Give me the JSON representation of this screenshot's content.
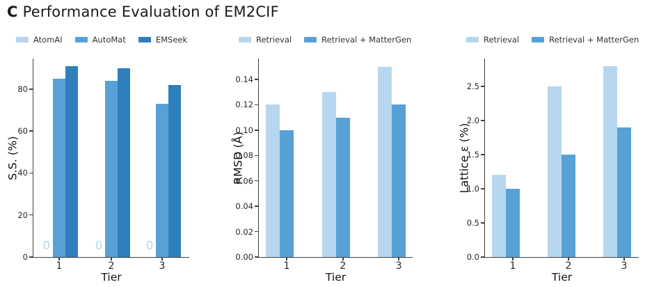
{
  "title": {
    "prefix": "C",
    "text": "Performance Evaluation of EM2CIF"
  },
  "chart_data": [
    {
      "type": "bar",
      "name": "structure-similarity",
      "xlabel": "Tier",
      "ylabel": "S.S. (%)",
      "categories": [
        "1",
        "2",
        "3"
      ],
      "series": [
        {
          "name": "AtomAI",
          "color": "#b6d7ef",
          "values": [
            0,
            0,
            0
          ],
          "show_value_labels": true
        },
        {
          "name": "AutoMat",
          "color": "#57a1d6",
          "values": [
            85,
            84,
            73
          ]
        },
        {
          "name": "EMSeek",
          "color": "#2f7fbc",
          "values": [
            91,
            90,
            82
          ]
        }
      ],
      "yticks": [
        0,
        20,
        40,
        60,
        80
      ],
      "ytick_labels": [
        "0",
        "20",
        "40",
        "60",
        "80"
      ],
      "ylim": [
        0,
        94.6
      ],
      "legend_position": "top"
    },
    {
      "type": "bar",
      "name": "rmsd",
      "xlabel": "Tier",
      "ylabel": "RMSD (Å)",
      "categories": [
        "1",
        "2",
        "3"
      ],
      "series": [
        {
          "name": "Retrieval",
          "color": "#b6d7ef",
          "values": [
            0.12,
            0.13,
            0.15
          ]
        },
        {
          "name": "Retrieval + MatterGen",
          "color": "#57a1d6",
          "values": [
            0.1,
            0.11,
            0.12
          ]
        }
      ],
      "yticks": [
        0,
        0.02,
        0.04,
        0.06,
        0.08,
        0.1,
        0.12,
        0.14
      ],
      "ytick_labels": [
        "0.00",
        "0.02",
        "0.04",
        "0.06",
        "0.08",
        "0.10",
        "0.12",
        "0.14"
      ],
      "ylim": [
        0,
        0.1565
      ],
      "legend_position": "top"
    },
    {
      "type": "bar",
      "name": "lattice-strain",
      "xlabel": "Tier",
      "ylabel": "Lattice ε (%)",
      "categories": [
        "1",
        "2",
        "3"
      ],
      "series": [
        {
          "name": "Retrieval",
          "color": "#b6d7ef",
          "values": [
            1.2,
            2.5,
            2.8
          ]
        },
        {
          "name": "Retrieval + MatterGen",
          "color": "#57a1d6",
          "values": [
            1.0,
            1.5,
            1.9
          ]
        }
      ],
      "yticks": [
        0,
        0.5,
        1.0,
        1.5,
        2.0,
        2.5
      ],
      "ytick_labels": [
        "0.0",
        "0.5",
        "1.0",
        "1.5",
        "2.0",
        "2.5"
      ],
      "ylim": [
        0,
        2.91
      ],
      "legend_position": "top"
    }
  ]
}
